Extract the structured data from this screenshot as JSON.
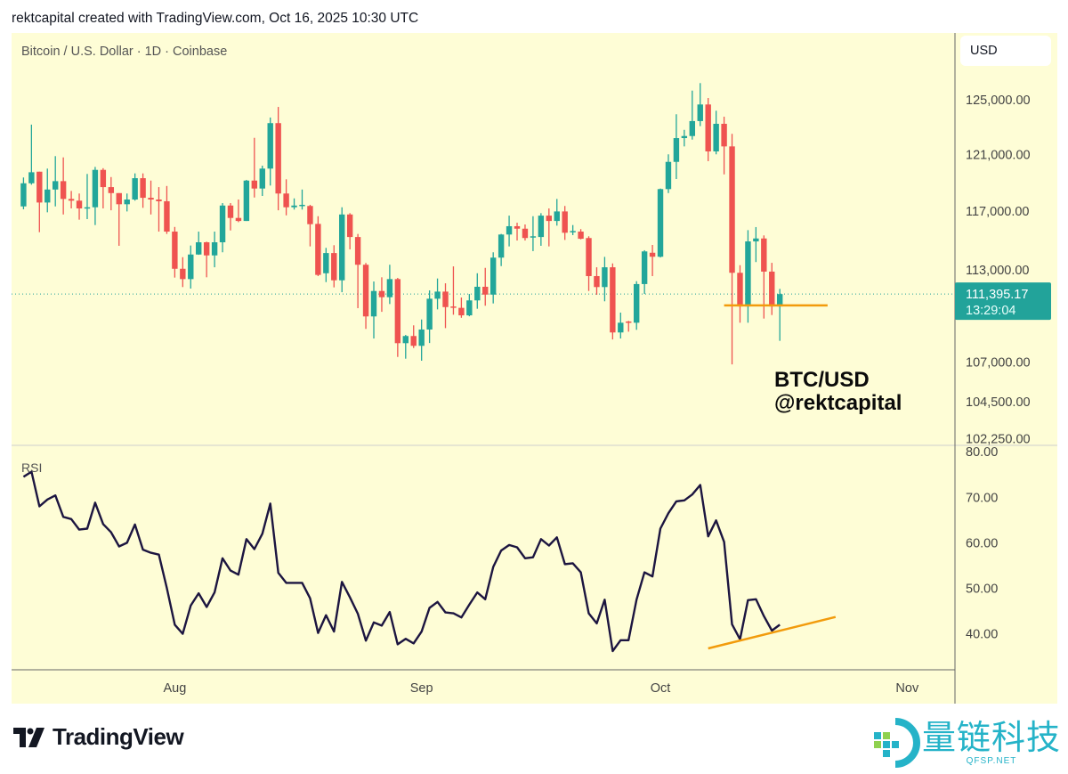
{
  "header": {
    "credit": "rektcapital created with TradingView.com, Oct 16, 2025 10:30 UTC",
    "symbol": "Bitcoin / U.S. Dollar · 1D · Coinbase",
    "currency_button": "USD"
  },
  "watermark": {
    "line1": "BTC/USD",
    "line2": "@rektcapital"
  },
  "footer": {
    "tradingview_logo": "TradingView",
    "partner_logo": "量链科技",
    "partner_logo_sub": "QFSP.NET"
  },
  "colors": {
    "up": "#22a69a",
    "down": "#ef5350",
    "rsi_line": "#1c1540",
    "annotation": "#f29b0c",
    "background": "#fefdd6",
    "price_label": "#22a39a"
  },
  "chart_data": [
    {
      "type": "candlestick",
      "title": "Bitcoin / U.S. Dollar · 1D · Coinbase",
      "scale": "log",
      "ylabel": "USD",
      "ylim": [
        101840,
        130050
      ],
      "xlim": [
        -1.5,
        117
      ],
      "x_ticks": [
        {
          "label": "Aug",
          "index": 19
        },
        {
          "label": "Sep",
          "index": 50
        },
        {
          "label": "Oct",
          "index": 80
        },
        {
          "label": "Nov",
          "index": 111
        }
      ],
      "y_ticks": [
        "125,000.00",
        "121,000.00",
        "117,000.00",
        "113,000.00",
        "107,000.00",
        "104,500.00",
        "102,250.00"
      ],
      "y_tick_values": [
        125000,
        121000,
        117000,
        113000,
        107000,
        104500,
        102250
      ],
      "last_price": {
        "value": 111395.17,
        "label": "111,395.17",
        "countdown": "13:29:04"
      },
      "ohlc_columns": [
        "open",
        "high",
        "low",
        "close"
      ],
      "ohlc": [
        [
          117340,
          119370,
          117140,
          118960
        ],
        [
          118960,
          123170,
          118860,
          119740
        ],
        [
          119780,
          119780,
          115560,
          117610
        ],
        [
          117610,
          120000,
          116930,
          118520
        ],
        [
          118520,
          120890,
          117340,
          119110
        ],
        [
          119110,
          120800,
          116780,
          117860
        ],
        [
          117860,
          118420,
          117200,
          117740
        ],
        [
          117740,
          118240,
          116420,
          117200
        ],
        [
          117200,
          119620,
          116460,
          117280
        ],
        [
          117280,
          120120,
          116050,
          119910
        ],
        [
          119910,
          120030,
          117200,
          118690
        ],
        [
          118690,
          119400,
          117070,
          118270
        ],
        [
          118270,
          118270,
          114630,
          117490
        ],
        [
          117490,
          118240,
          116990,
          117820
        ],
        [
          117820,
          119660,
          117740,
          119320
        ],
        [
          119320,
          119660,
          117240,
          117940
        ],
        [
          117940,
          119150,
          116780,
          117820
        ],
        [
          117820,
          118690,
          115600,
          117700
        ],
        [
          117700,
          118770,
          115440,
          115600
        ],
        [
          115600,
          115920,
          112490,
          113080
        ],
        [
          113080,
          113860,
          111860,
          112390
        ],
        [
          112390,
          114650,
          111760,
          114040
        ],
        [
          114040,
          115600,
          114020,
          114870
        ],
        [
          114870,
          114910,
          112510,
          113980
        ],
        [
          113980,
          115600,
          113180,
          114870
        ],
        [
          114870,
          117570,
          114190,
          117400
        ],
        [
          117400,
          117570,
          115680,
          116540
        ],
        [
          116540,
          117820,
          116250,
          116330
        ],
        [
          116330,
          119200,
          116330,
          119150
        ],
        [
          119150,
          122210,
          117960,
          118590
        ],
        [
          118590,
          120210,
          118070,
          120000
        ],
        [
          120000,
          123690,
          118800,
          123280
        ],
        [
          123280,
          124470,
          117070,
          118240
        ],
        [
          118240,
          119240,
          116720,
          117280
        ],
        [
          117280,
          117900,
          117120,
          117400
        ],
        [
          117370,
          118520,
          117120,
          117450
        ],
        [
          117370,
          117450,
          114590,
          116110
        ],
        [
          116130,
          116660,
          112590,
          112670
        ],
        [
          112780,
          114490,
          112190,
          114140
        ],
        [
          114140,
          114670,
          111840,
          112310
        ],
        [
          112310,
          117280,
          111520,
          116780
        ],
        [
          116780,
          116870,
          114390,
          115230
        ],
        [
          115230,
          115440,
          110470,
          113350
        ],
        [
          113350,
          113470,
          109120,
          109930
        ],
        [
          109930,
          112230,
          108500,
          111600
        ],
        [
          111600,
          112510,
          110230,
          111190
        ],
        [
          111190,
          113350,
          110740,
          112390
        ],
        [
          112390,
          112470,
          107320,
          108200
        ],
        [
          108200,
          108730,
          107210,
          108660
        ],
        [
          108660,
          109350,
          107890,
          108030
        ],
        [
          108030,
          109730,
          107080,
          109080
        ],
        [
          109080,
          111640,
          108210,
          111090
        ],
        [
          111090,
          112430,
          110390,
          111560
        ],
        [
          111560,
          112110,
          109170,
          110540
        ],
        [
          110580,
          113240,
          110040,
          110510
        ],
        [
          110490,
          111170,
          109840,
          110000
        ],
        [
          110000,
          111400,
          109940,
          110980
        ],
        [
          110980,
          112780,
          110430,
          111880
        ],
        [
          111880,
          113140,
          110630,
          111360
        ],
        [
          111360,
          114190,
          110780,
          113830
        ],
        [
          113830,
          115440,
          113260,
          115400
        ],
        [
          115400,
          116700,
          114590,
          115970
        ],
        [
          115970,
          116210,
          114990,
          115800
        ],
        [
          115800,
          116090,
          114990,
          115160
        ],
        [
          115250,
          116660,
          114270,
          115280
        ],
        [
          115230,
          116870,
          114630,
          116700
        ],
        [
          116700,
          117200,
          114590,
          116330
        ],
        [
          116330,
          117860,
          116010,
          116990
        ],
        [
          116990,
          117370,
          115030,
          115520
        ],
        [
          115560,
          116050,
          115360,
          115640
        ],
        [
          115600,
          115770,
          115070,
          115110
        ],
        [
          115160,
          115280,
          111600,
          112590
        ],
        [
          112590,
          113180,
          111350,
          111860
        ],
        [
          111860,
          113880,
          110920,
          113180
        ],
        [
          113180,
          113440,
          108440,
          108890
        ],
        [
          108890,
          110180,
          108500,
          109520
        ],
        [
          109600,
          109640,
          108940,
          109520
        ],
        [
          109520,
          112250,
          109060,
          112060
        ],
        [
          112060,
          114330,
          111400,
          114250
        ],
        [
          114160,
          114690,
          112590,
          113890
        ],
        [
          113890,
          118590,
          113840,
          118550
        ],
        [
          118550,
          121020,
          118270,
          120480
        ],
        [
          120480,
          123930,
          119260,
          122190
        ],
        [
          122190,
          122790,
          121590,
          122340
        ],
        [
          122340,
          125680,
          122080,
          123430
        ],
        [
          123430,
          126240,
          123060,
          124650
        ],
        [
          124650,
          125130,
          120530,
          121230
        ],
        [
          121230,
          124190,
          121020,
          123230
        ],
        [
          123230,
          123750,
          119590,
          121590
        ],
        [
          121590,
          122500,
          106850,
          112810
        ],
        [
          112810,
          113320,
          109520,
          110580
        ],
        [
          110580,
          115700,
          109520,
          114930
        ],
        [
          114930,
          115910,
          113530,
          115130
        ],
        [
          115130,
          115340,
          109790,
          112890
        ],
        [
          112890,
          113480,
          110020,
          110580
        ],
        [
          110580,
          111740,
          108350,
          111395
        ]
      ],
      "annotations": [
        {
          "type": "horizontal_segment",
          "value": 110650,
          "from_index": 88,
          "to_index": 101
        }
      ]
    },
    {
      "type": "line",
      "title": "RSI",
      "ylim": [
        32.1,
        81.4
      ],
      "y_ticks": [
        "80.00",
        "70.00",
        "60.00",
        "50.00",
        "40.00"
      ],
      "y_tick_values": [
        80,
        70,
        60,
        50,
        40
      ],
      "values": [
        74.5,
        75.6,
        68.0,
        69.5,
        70.4,
        65.7,
        65.2,
        62.9,
        63.1,
        68.8,
        64.1,
        62.3,
        59.2,
        60.0,
        64.0,
        58.5,
        57.8,
        57.4,
        50.1,
        42.0,
        40.0,
        46.2,
        48.9,
        45.9,
        49.1,
        56.6,
        53.9,
        53.0,
        60.8,
        58.6,
        62.0,
        68.6,
        53.4,
        51.2,
        51.2,
        51.2,
        47.8,
        40.2,
        44.1,
        40.5,
        51.4,
        48.0,
        44.4,
        38.5,
        42.5,
        41.8,
        44.8,
        37.7,
        38.9,
        37.9,
        40.5,
        45.7,
        47.0,
        44.7,
        44.5,
        43.6,
        46.4,
        49.1,
        47.6,
        54.7,
        58.3,
        59.5,
        59.0,
        56.6,
        56.8,
        60.8,
        59.4,
        61.2,
        55.3,
        55.5,
        53.5,
        44.5,
        42.3,
        47.5,
        36.2,
        38.6,
        38.6,
        47.5,
        53.5,
        52.6,
        63.1,
        66.5,
        69.1,
        69.3,
        70.6,
        72.7,
        61.4,
        64.9,
        60.2,
        42.1,
        38.8,
        47.4,
        47.6,
        43.9,
        40.7,
        42.0
      ],
      "annotations": [
        {
          "type": "trendline",
          "from": {
            "index": 86,
            "value": 36.8
          },
          "to": {
            "index": 102,
            "value": 43.7
          }
        }
      ]
    }
  ]
}
